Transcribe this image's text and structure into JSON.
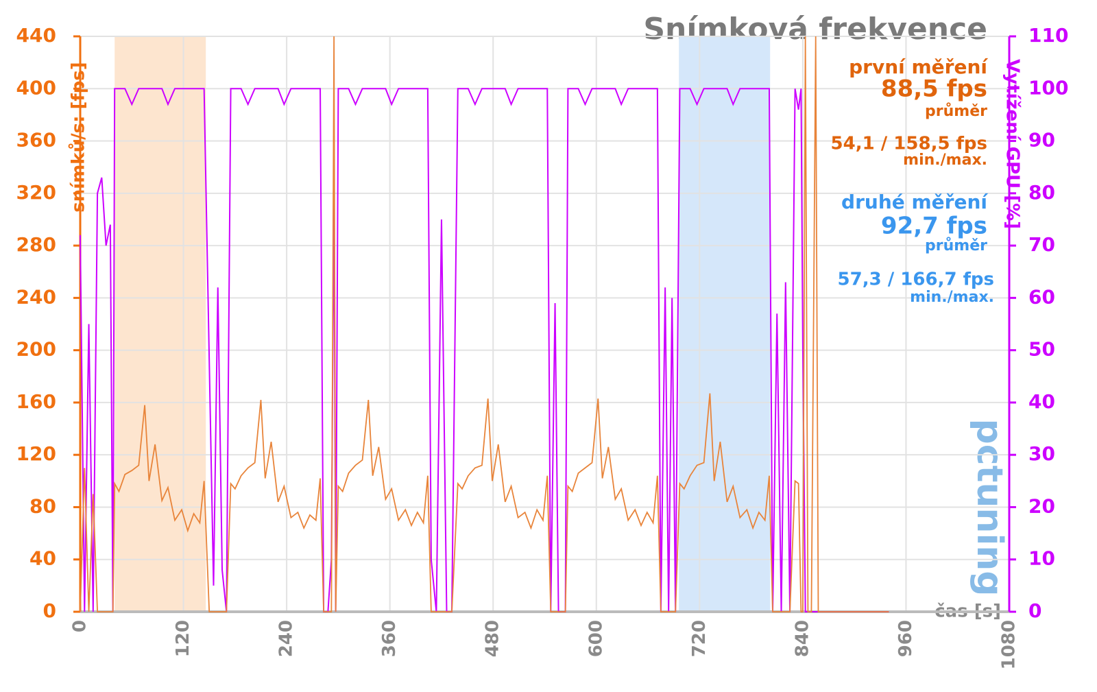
{
  "chart_data": {
    "type": "line",
    "title": "Snímková frekvence",
    "y_label": "snímků/s: [fps]",
    "y2_label": "Vytížení GPU [%]",
    "x_label": "čas [s]",
    "watermark": "pctuning",
    "xlim": [
      0,
      1080
    ],
    "xticks": [
      0,
      120,
      240,
      360,
      480,
      600,
      720,
      840,
      960,
      1080
    ],
    "ylim": [
      0,
      440
    ],
    "yticks": [
      0,
      40,
      80,
      120,
      160,
      200,
      240,
      280,
      320,
      360,
      400,
      440
    ],
    "y2lim": [
      0,
      110
    ],
    "y2ticks": [
      0,
      10,
      20,
      30,
      40,
      50,
      60,
      70,
      80,
      90,
      100,
      110
    ],
    "grid": true,
    "bands": [
      {
        "start": 40,
        "end": 146,
        "color": "#fde5cf"
      },
      {
        "start": 696,
        "end": 802,
        "color": "#d5e7fa"
      }
    ],
    "annotations": [
      {
        "text": "první měření",
        "color": "#e0640c"
      },
      {
        "text": "88,5 fps",
        "color": "#e0640c"
      },
      {
        "text": "průměr",
        "color": "#e0640c"
      },
      {
        "text": "54,1 / 158,5 fps",
        "color": "#e0640c"
      },
      {
        "text": "min./max.",
        "color": "#e0640c"
      },
      {
        "text": "druhé měření",
        "color": "#3a96ee"
      },
      {
        "text": "92,7 fps",
        "color": "#3a96ee"
      },
      {
        "text": "průměr",
        "color": "#3a96ee"
      },
      {
        "text": "57,3 / 166,7 fps",
        "color": "#3a96ee"
      },
      {
        "text": "min./max.",
        "color": "#3a96ee"
      }
    ],
    "x": [
      0,
      5,
      10,
      15,
      20,
      25,
      30,
      35,
      38,
      40,
      45,
      52,
      60,
      68,
      75,
      80,
      87,
      95,
      102,
      110,
      118,
      125,
      132,
      139,
      144,
      150,
      155,
      160,
      165,
      170,
      175,
      180,
      187,
      195,
      203,
      210,
      215,
      222,
      230,
      237,
      245,
      253,
      260,
      267,
      274,
      279,
      283,
      288,
      292,
      295,
      297,
      300,
      305,
      312,
      320,
      328,
      335,
      340,
      347,
      355,
      362,
      370,
      378,
      385,
      392,
      399,
      404,
      408,
      414,
      420,
      426,
      432,
      439,
      444,
      451,
      459,
      467,
      474,
      479,
      486,
      494,
      501,
      509,
      517,
      524,
      531,
      538,
      543,
      547,
      552,
      556,
      560,
      564,
      567,
      572,
      579,
      587,
      595,
      602,
      607,
      614,
      622,
      629,
      637,
      645,
      652,
      659,
      666,
      671,
      675,
      680,
      684,
      688,
      692,
      697,
      702,
      709,
      717,
      725,
      732,
      737,
      744,
      752,
      759,
      767,
      775,
      782,
      789,
      796,
      801,
      805,
      810,
      815,
      820,
      825,
      831,
      835,
      838,
      840,
      843,
      846,
      850,
      855,
      858,
      900,
      940
    ],
    "series": [
      {
        "name": "fps",
        "color": "#e8843a",
        "values": [
          0,
          110,
          0,
          90,
          0,
          0,
          0,
          0,
          0,
          98,
          92,
          105,
          108,
          112,
          158,
          100,
          128,
          85,
          95,
          70,
          78,
          62,
          75,
          68,
          100,
          0,
          0,
          0,
          0,
          0,
          98,
          94,
          104,
          110,
          114,
          162,
          102,
          130,
          84,
          96,
          72,
          76,
          64,
          74,
          70,
          102,
          0,
          0,
          0,
          440,
          0,
          96,
          92,
          106,
          112,
          116,
          162,
          104,
          126,
          86,
          94,
          70,
          78,
          66,
          76,
          68,
          104,
          0,
          0,
          0,
          0,
          0,
          98,
          94,
          104,
          110,
          112,
          163,
          100,
          128,
          84,
          96,
          72,
          76,
          64,
          78,
          70,
          104,
          0,
          0,
          0,
          0,
          0,
          96,
          92,
          106,
          110,
          114,
          163,
          102,
          126,
          86,
          94,
          70,
          78,
          66,
          76,
          68,
          104,
          0,
          0,
          0,
          0,
          0,
          98,
          94,
          104,
          112,
          114,
          167,
          100,
          130,
          84,
          96,
          72,
          78,
          64,
          76,
          70,
          104,
          0,
          0,
          0,
          0,
          0,
          100,
          98,
          0,
          0,
          440,
          0,
          0,
          440,
          0,
          0,
          0
        ]
      },
      {
        "name": "gpu",
        "color": "#cc00ff",
        "axis": "y2",
        "values": [
          72,
          0,
          55,
          0,
          80,
          83,
          70,
          74,
          0,
          100,
          100,
          100,
          97,
          100,
          100,
          100,
          100,
          100,
          97,
          100,
          100,
          100,
          100,
          100,
          100,
          48,
          5,
          62,
          8,
          0,
          100,
          100,
          100,
          97,
          100,
          100,
          100,
          100,
          100,
          97,
          100,
          100,
          100,
          100,
          100,
          100,
          0,
          0,
          10,
          82,
          0,
          100,
          100,
          100,
          97,
          100,
          100,
          100,
          100,
          100,
          97,
          100,
          100,
          100,
          100,
          100,
          100,
          10,
          0,
          75,
          0,
          0,
          100,
          100,
          100,
          97,
          100,
          100,
          100,
          100,
          100,
          97,
          100,
          100,
          100,
          100,
          100,
          100,
          0,
          59,
          0,
          0,
          0,
          100,
          100,
          100,
          97,
          100,
          100,
          100,
          100,
          100,
          97,
          100,
          100,
          100,
          100,
          100,
          100,
          0,
          62,
          0,
          60,
          0,
          100,
          100,
          100,
          97,
          100,
          100,
          100,
          100,
          100,
          97,
          100,
          100,
          100,
          100,
          100,
          100,
          0,
          57,
          0,
          63,
          0,
          100,
          96,
          100,
          51,
          0,
          0,
          0,
          0,
          0,
          0,
          0
        ]
      }
    ]
  }
}
